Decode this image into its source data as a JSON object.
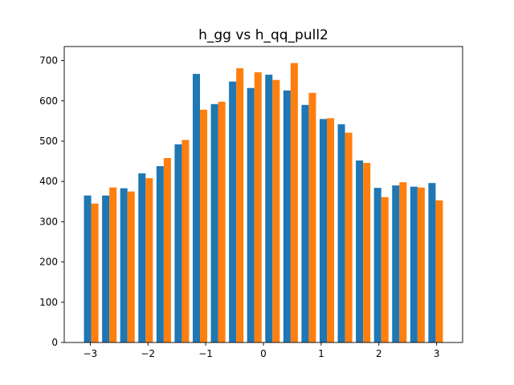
{
  "chart_data": {
    "type": "bar",
    "title": "h_gg vs h_qq_pull2",
    "xlabel": "",
    "ylabel": "",
    "xlim": [
      -3.45,
      3.45
    ],
    "ylim": [
      0,
      735
    ],
    "xticks": [
      -3,
      -2,
      -1,
      0,
      1,
      2,
      3
    ],
    "xtick_labels": [
      "−3",
      "−2",
      "−1",
      "0",
      "1",
      "2",
      "3"
    ],
    "yticks": [
      0,
      100,
      200,
      300,
      400,
      500,
      600,
      700
    ],
    "ytick_labels": [
      "0",
      "100",
      "200",
      "300",
      "400",
      "500",
      "600",
      "700"
    ],
    "bin_edges": [
      -3.14,
      -2.826,
      -2.512,
      -2.198,
      -1.884,
      -1.57,
      -1.256,
      -0.942,
      -0.628,
      -0.314,
      0.0,
      0.314,
      0.628,
      0.942,
      1.256,
      1.57,
      1.884,
      2.198,
      2.512,
      2.826,
      3.14
    ],
    "series": [
      {
        "name": "h_gg",
        "color": "#1f77b4",
        "values": [
          365,
          365,
          383,
          420,
          438,
          492,
          667,
          592,
          648,
          632,
          665,
          626,
          590,
          555,
          542,
          452,
          384,
          390,
          387,
          396
        ]
      },
      {
        "name": "h_qq_pull2",
        "color": "#ff7f0e",
        "values": [
          345,
          385,
          375,
          408,
          458,
          503,
          578,
          598,
          681,
          671,
          652,
          694,
          620,
          557,
          521,
          446,
          361,
          398,
          385,
          353
        ]
      }
    ],
    "grid": false,
    "legend": "none"
  }
}
